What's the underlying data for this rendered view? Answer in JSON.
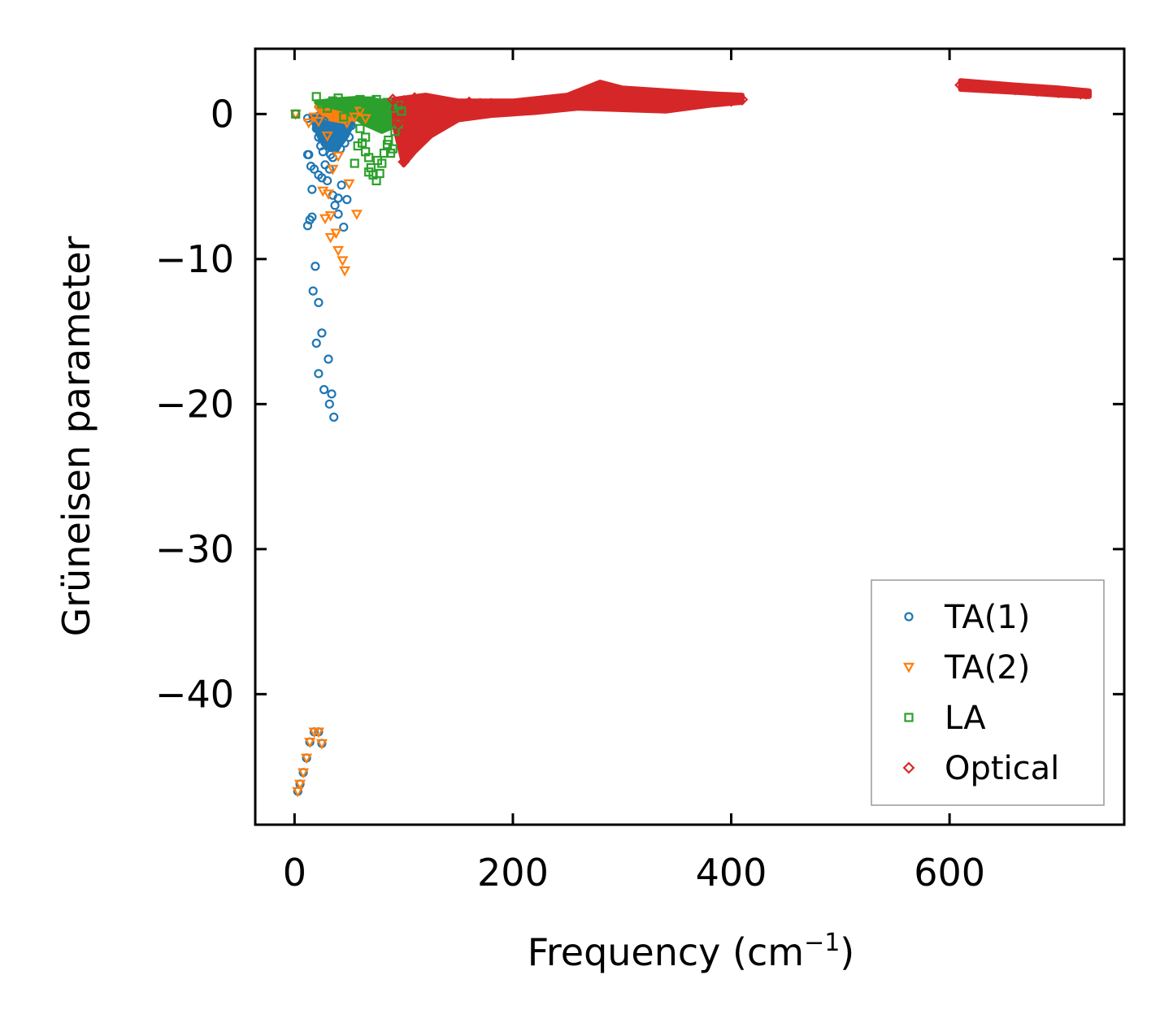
{
  "chart_data": {
    "type": "scatter",
    "xlabel": "Frequency (cm",
    "xlabel_sup": "−1",
    "xlabel_end": ")",
    "ylabel": "Grüneisen parameter",
    "xlim": [
      -36,
      760
    ],
    "ylim": [
      -49,
      4.5
    ],
    "xticks": [
      0,
      200,
      400,
      600
    ],
    "yticks": [
      0,
      -10,
      -20,
      -30,
      -40
    ],
    "xtick_labels": [
      "0",
      "200",
      "400",
      "600"
    ],
    "ytick_labels": [
      "0",
      "−10",
      "−20",
      "−30",
      "−40"
    ],
    "legend_position": "bottom-right",
    "series": [
      {
        "name": "TA(1)",
        "marker": "circle",
        "color": "#1f77b4",
        "points": [
          [
            3,
            -46.7
          ],
          [
            5,
            -46.2
          ],
          [
            8,
            -45.4
          ],
          [
            11,
            -44.4
          ],
          [
            14,
            -43.3
          ],
          [
            18,
            -42.6
          ],
          [
            22,
            -42.6
          ],
          [
            25,
            -43.4
          ],
          [
            1,
            0
          ],
          [
            12,
            -0.3
          ],
          [
            13,
            -2.8
          ],
          [
            12,
            -2.8
          ],
          [
            15,
            -3.6
          ],
          [
            18,
            -3.8
          ],
          [
            22,
            -4.2
          ],
          [
            25,
            -4.4
          ],
          [
            28,
            -3.5
          ],
          [
            30,
            -4.6
          ],
          [
            32,
            -3.8
          ],
          [
            35,
            -5.6
          ],
          [
            37,
            -6.3
          ],
          [
            40,
            -5.8
          ],
          [
            43,
            -4.9
          ],
          [
            45,
            -7.8
          ],
          [
            48,
            -5.9
          ],
          [
            40,
            -6.9
          ],
          [
            12,
            -7.7
          ],
          [
            14,
            -7.3
          ],
          [
            16,
            -7.1
          ],
          [
            16,
            -5.2
          ],
          [
            19,
            -10.5
          ],
          [
            17,
            -12.2
          ],
          [
            20,
            -15.8
          ],
          [
            22,
            -13.0
          ],
          [
            25,
            -15.1
          ],
          [
            22,
            -17.9
          ],
          [
            27,
            -19.0
          ],
          [
            31,
            -16.9
          ],
          [
            32,
            -20.0
          ],
          [
            34,
            -19.3
          ],
          [
            36,
            -20.9
          ],
          [
            20,
            -1.0
          ],
          [
            22,
            -1.6
          ],
          [
            24,
            -2.2
          ],
          [
            26,
            -2.6
          ],
          [
            28,
            -2.0
          ],
          [
            30,
            -1.4
          ],
          [
            33,
            -2.8
          ],
          [
            35,
            -3.0
          ],
          [
            27,
            -0.5
          ],
          [
            30,
            -0.8
          ],
          [
            38,
            -2.3
          ],
          [
            42,
            -2.4
          ],
          [
            46,
            -2.0
          ],
          [
            50,
            -1.6
          ],
          [
            52,
            -0.8
          ]
        ]
      },
      {
        "name": "TA(2)",
        "marker": "triangle-down",
        "color": "#ff7f0e",
        "points": [
          [
            3,
            -46.7
          ],
          [
            5,
            -46.2
          ],
          [
            8,
            -45.4
          ],
          [
            11,
            -44.4
          ],
          [
            14,
            -43.3
          ],
          [
            18,
            -42.6
          ],
          [
            22,
            -42.6
          ],
          [
            25,
            -43.4
          ],
          [
            1,
            0
          ],
          [
            13,
            -0.6
          ],
          [
            18,
            -0.2
          ],
          [
            22,
            -0.5
          ],
          [
            26,
            -5.3
          ],
          [
            28,
            -7.2
          ],
          [
            31,
            -5.5
          ],
          [
            33,
            -7.0
          ],
          [
            33,
            -8.5
          ],
          [
            38,
            -8.2
          ],
          [
            40,
            -9.4
          ],
          [
            44,
            -10.1
          ],
          [
            46,
            -10.8
          ],
          [
            50,
            -4.8
          ],
          [
            57,
            -6.9
          ],
          [
            30,
            -1.5
          ],
          [
            35,
            -3.8
          ],
          [
            40,
            -2.9
          ],
          [
            48,
            -0.6
          ],
          [
            55,
            -0.2
          ],
          [
            60,
            0.2
          ],
          [
            65,
            -0.3
          ]
        ]
      },
      {
        "name": "LA",
        "marker": "square",
        "color": "#2ca02c",
        "points": [
          [
            1,
            0
          ],
          [
            20,
            1.2
          ],
          [
            25,
            0.7
          ],
          [
            30,
            0.4
          ],
          [
            35,
            0.9
          ],
          [
            40,
            1.1
          ],
          [
            45,
            0.8
          ],
          [
            50,
            0.6
          ],
          [
            55,
            0.9
          ],
          [
            60,
            1.0
          ],
          [
            65,
            0.7
          ],
          [
            70,
            0.9
          ],
          [
            75,
            1.0
          ],
          [
            80,
            0.6
          ],
          [
            85,
            0.8
          ],
          [
            90,
            0.4
          ],
          [
            95,
            0.6
          ],
          [
            45,
            -0.2
          ],
          [
            60,
            -1.0
          ],
          [
            62,
            -2.0
          ],
          [
            65,
            -2.6
          ],
          [
            68,
            -3.0
          ],
          [
            70,
            -3.7
          ],
          [
            72,
            -4.2
          ],
          [
            75,
            -4.6
          ],
          [
            78,
            -4.1
          ],
          [
            80,
            -3.4
          ],
          [
            82,
            -2.7
          ],
          [
            85,
            -2.1
          ],
          [
            88,
            -2.7
          ],
          [
            90,
            -2.4
          ],
          [
            92,
            -1.2
          ],
          [
            95,
            -0.7
          ],
          [
            98,
            0.2
          ],
          [
            55,
            -3.4
          ],
          [
            65,
            -1.6
          ],
          [
            75,
            -0.3
          ],
          [
            85,
            -0.3
          ],
          [
            58,
            -2.2
          ],
          [
            68,
            -4.0
          ],
          [
            76,
            -3.2
          ],
          [
            86,
            -1.8
          ]
        ]
      },
      {
        "name": "Optical",
        "marker": "diamond",
        "color": "#d62728",
        "points": [
          [
            90,
            1.0
          ],
          [
            100,
            0.9
          ],
          [
            110,
            1.1
          ],
          [
            115,
            0.8
          ],
          [
            95,
            -0.6
          ],
          [
            100,
            -2.0
          ],
          [
            100,
            -3.3
          ],
          [
            105,
            -2.7
          ],
          [
            110,
            -2.4
          ],
          [
            115,
            -1.8
          ],
          [
            120,
            -1.4
          ],
          [
            125,
            -0.6
          ],
          [
            130,
            -0.2
          ],
          [
            135,
            0.5
          ],
          [
            140,
            0.6
          ],
          [
            150,
            0.3
          ],
          [
            160,
            0.8
          ],
          [
            170,
            0.7
          ],
          [
            180,
            0.7
          ],
          [
            190,
            0.6
          ],
          [
            200,
            0.4
          ],
          [
            210,
            0.7
          ],
          [
            220,
            0.7
          ],
          [
            230,
            0.9
          ],
          [
            240,
            1.0
          ],
          [
            250,
            0.6
          ],
          [
            260,
            1.2
          ],
          [
            270,
            1.0
          ],
          [
            280,
            1.5
          ],
          [
            290,
            1.6
          ],
          [
            300,
            0.9
          ],
          [
            310,
            1.4
          ],
          [
            320,
            0.8
          ],
          [
            330,
            1.0
          ],
          [
            340,
            1.2
          ],
          [
            350,
            0.6
          ],
          [
            360,
            0.9
          ],
          [
            370,
            0.8
          ],
          [
            380,
            1.1
          ],
          [
            390,
            1.0
          ],
          [
            400,
            0.9
          ],
          [
            410,
            1.0
          ],
          [
            610,
            2.0
          ],
          [
            620,
            1.9
          ],
          [
            630,
            1.9
          ],
          [
            640,
            1.8
          ],
          [
            650,
            1.8
          ],
          [
            660,
            1.7
          ],
          [
            670,
            1.7
          ],
          [
            680,
            1.6
          ],
          [
            690,
            1.6
          ],
          [
            700,
            1.5
          ],
          [
            710,
            1.5
          ],
          [
            720,
            1.4
          ],
          [
            725,
            1.4
          ]
        ]
      }
    ],
    "bands": [
      {
        "series": "TA(1)",
        "upper": [
          [
            15,
            -0.2
          ],
          [
            25,
            0.1
          ],
          [
            35,
            0.2
          ],
          [
            45,
            0.1
          ],
          [
            50,
            0.0
          ],
          [
            55,
            -0.3
          ]
        ],
        "lower": [
          [
            55,
            -0.3
          ],
          [
            48,
            -1.5
          ],
          [
            40,
            -2.3
          ],
          [
            32,
            -2.4
          ],
          [
            24,
            -1.8
          ],
          [
            15,
            -0.2
          ]
        ]
      },
      {
        "series": "TA(2)",
        "upper": [
          [
            20,
            0.5
          ],
          [
            35,
            0.6
          ],
          [
            50,
            0.5
          ],
          [
            65,
            0.4
          ],
          [
            70,
            0.1
          ]
        ],
        "lower": [
          [
            70,
            0.1
          ],
          [
            60,
            -0.3
          ],
          [
            45,
            -0.5
          ],
          [
            30,
            -0.3
          ],
          [
            20,
            0.5
          ]
        ]
      },
      {
        "series": "LA",
        "upper": [
          [
            20,
            0.8
          ],
          [
            40,
            1.0
          ],
          [
            60,
            1.1
          ],
          [
            80,
            0.9
          ],
          [
            95,
            0.7
          ]
        ],
        "lower": [
          [
            95,
            0.7
          ],
          [
            92,
            -0.8
          ],
          [
            80,
            -1.2
          ],
          [
            65,
            -0.7
          ],
          [
            45,
            0.3
          ],
          [
            20,
            0.8
          ]
        ]
      },
      {
        "series": "Optical",
        "upper": [
          [
            90,
            1.0
          ],
          [
            120,
            1.3
          ],
          [
            150,
            0.9
          ],
          [
            200,
            0.9
          ],
          [
            250,
            1.3
          ],
          [
            280,
            2.2
          ],
          [
            300,
            1.8
          ],
          [
            340,
            1.6
          ],
          [
            380,
            1.4
          ],
          [
            410,
            1.3
          ]
        ],
        "lower": [
          [
            410,
            0.8
          ],
          [
            380,
            0.6
          ],
          [
            340,
            0.2
          ],
          [
            300,
            0.3
          ],
          [
            260,
            0.4
          ],
          [
            220,
            0.1
          ],
          [
            180,
            -0.1
          ],
          [
            150,
            -0.4
          ],
          [
            125,
            -1.5
          ],
          [
            110,
            -2.6
          ],
          [
            100,
            -3.5
          ],
          [
            92,
            -1.0
          ],
          [
            90,
            1.0
          ]
        ]
      },
      {
        "series": "Optical",
        "upper": [
          [
            610,
            2.3
          ],
          [
            660,
            2.0
          ],
          [
            700,
            1.8
          ],
          [
            728,
            1.6
          ]
        ],
        "lower": [
          [
            728,
            1.2
          ],
          [
            700,
            1.3
          ],
          [
            660,
            1.5
          ],
          [
            610,
            1.7
          ]
        ]
      }
    ]
  }
}
